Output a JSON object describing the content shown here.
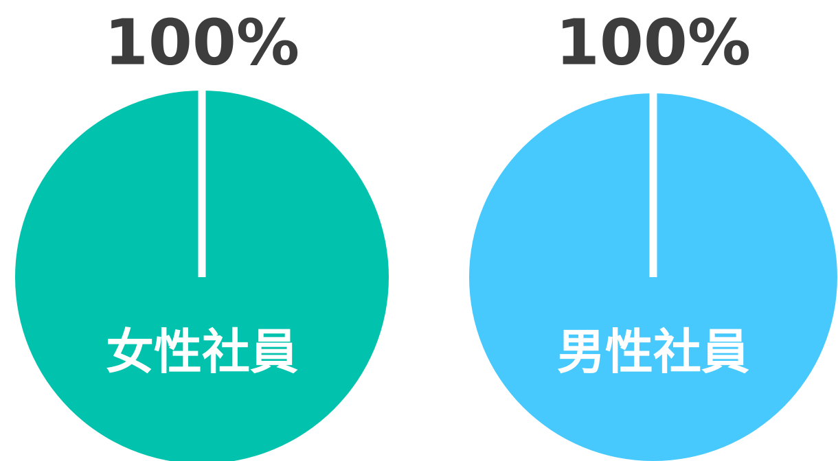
{
  "chart_data": [
    {
      "type": "pie",
      "categories": [
        "女性社員"
      ],
      "values": [
        100
      ],
      "value_labels": [
        "100%"
      ],
      "colors": [
        "#00c2ad"
      ]
    },
    {
      "type": "pie",
      "categories": [
        "男性社員"
      ],
      "values": [
        100
      ],
      "value_labels": [
        "100%"
      ],
      "colors": [
        "#48c9fd"
      ]
    }
  ]
}
